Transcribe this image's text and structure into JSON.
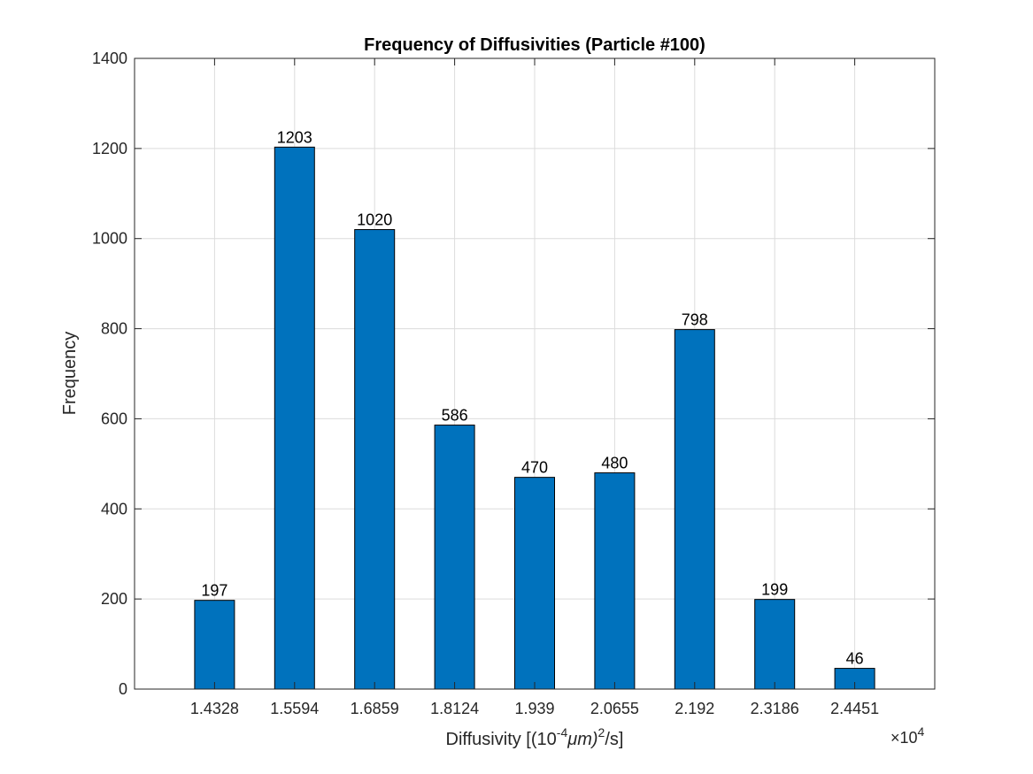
{
  "chart_data": {
    "type": "bar",
    "title": "Frequency of Diffusivities (Particle #100)",
    "xlabel": "Diffusivity [(10⁻⁴μm)²/s]",
    "xlabel_parts": {
      "prefix": "Diffusivity [(10",
      "exp1": "-4",
      "mid": "μm)",
      "exp2": "2",
      "suffix": "/s]"
    },
    "x_multiplier": {
      "base": "×10",
      "exponent": "4"
    },
    "ylabel": "Frequency",
    "categories": [
      "1.4328",
      "1.5594",
      "1.6859",
      "1.8124",
      "1.939",
      "2.0655",
      "2.192",
      "2.3186",
      "2.4451"
    ],
    "values": [
      197,
      1203,
      1020,
      586,
      470,
      480,
      798,
      199,
      46
    ],
    "data_labels": [
      "197",
      "1203",
      "1020",
      "586",
      "470",
      "480",
      "798",
      "199",
      "46"
    ],
    "ylim": [
      0,
      1400
    ],
    "yticks": [
      0,
      200,
      400,
      600,
      800,
      1000,
      1200,
      1400
    ],
    "ytick_labels": [
      "0",
      "200",
      "400",
      "600",
      "800",
      "1000",
      "1200",
      "1400"
    ],
    "grid": true,
    "bar_color": "#0072BD"
  }
}
